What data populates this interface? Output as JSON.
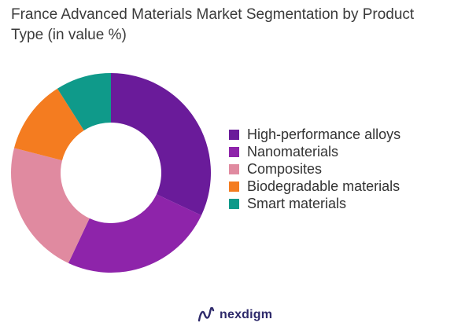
{
  "chart_data": {
    "type": "pie",
    "variant": "donut",
    "title": "France Advanced Materials Market Segmentation by Product Type (in value %)",
    "categories": [
      "High-performance alloys",
      "Nanomaterials",
      "Composites",
      "Biodegradable materials",
      "Smart materials"
    ],
    "values": [
      32,
      25,
      22,
      12,
      9
    ],
    "colors": [
      "#6a1b9a",
      "#8e24aa",
      "#e08aa0",
      "#f47c20",
      "#0f9a8a"
    ],
    "legend_position": "right"
  },
  "branding": {
    "logo_text": "nexdigm",
    "logo_color": "#2e2a6b"
  }
}
